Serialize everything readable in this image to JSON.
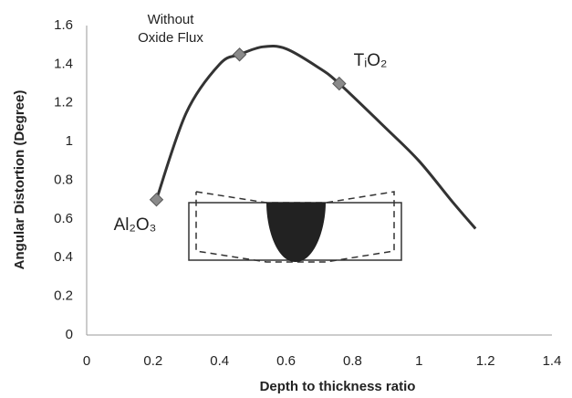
{
  "chart_data": {
    "type": "line",
    "xlabel": "Depth to thickness ratio",
    "ylabel": "Angular Distortion (Degree)",
    "xlim": [
      0,
      1.4
    ],
    "xticks": [
      0,
      0.2,
      0.4,
      0.6,
      0.8,
      1,
      1.2,
      1.4
    ],
    "ylim": [
      0,
      1.6
    ],
    "yticks": [
      0,
      0.2,
      0.4,
      0.6,
      0.8,
      1,
      1.2,
      1.4,
      1.6
    ],
    "grid": false,
    "series": [
      {
        "style": "line",
        "color": "#333333",
        "x": [
          0.21,
          0.3,
          0.4,
          0.46,
          0.53,
          0.6,
          0.7,
          0.76,
          0.9,
          1.0,
          1.1,
          1.17
        ],
        "values": [
          0.7,
          1.15,
          1.4,
          1.45,
          1.49,
          1.48,
          1.38,
          1.3,
          1.07,
          0.9,
          0.69,
          0.55
        ]
      },
      {
        "style": "markers",
        "color": "#8a8a8a",
        "x": [
          0.21,
          0.46,
          0.76
        ],
        "values": [
          0.7,
          1.45,
          1.3
        ]
      }
    ],
    "annotations": [
      "Without",
      "Oxide Flux",
      "Al₂O₃",
      "TᵢO₂"
    ]
  }
}
